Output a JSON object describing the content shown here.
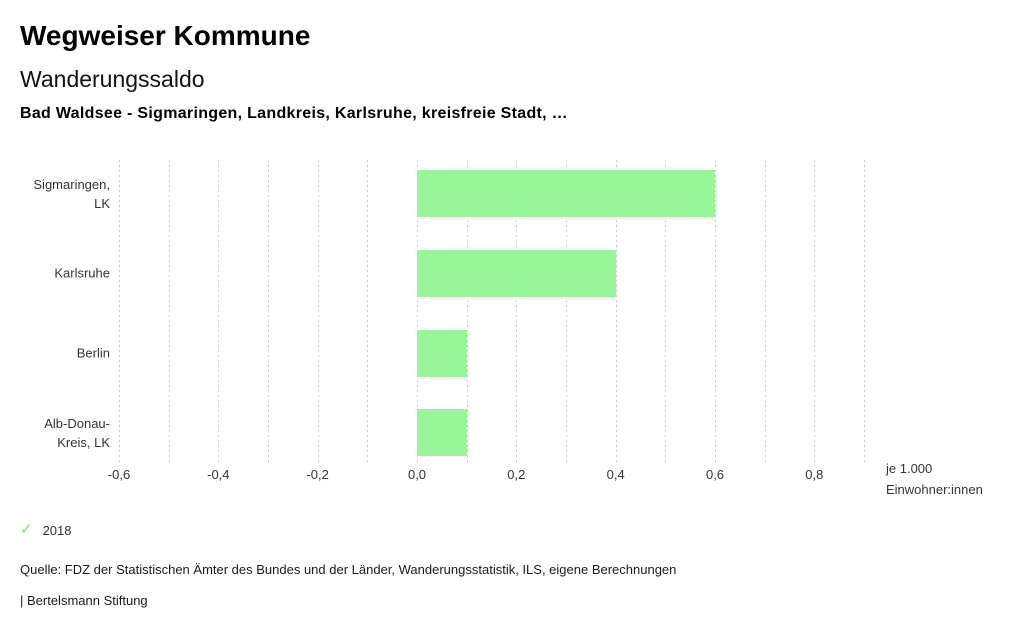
{
  "header": {
    "app_title": "Wegweiser Kommune",
    "chart_title": "Wanderungssaldo",
    "subtitle": "Bad Waldsee - Sigmaringen, Landkreis, Karlsruhe, kreisfreie Stadt, …"
  },
  "chart_data": {
    "type": "bar",
    "orientation": "horizontal",
    "title": "Wanderungssaldo",
    "categories": [
      "Sigmaringen, LK",
      "Karlsruhe",
      "Berlin",
      "Alb-Donau-Kreis, LK"
    ],
    "category_label_lines": [
      [
        "Sigmaringen,",
        "LK"
      ],
      [
        "Karlsruhe"
      ],
      [
        "Berlin"
      ],
      [
        "Alb-Donau-",
        "Kreis, LK"
      ]
    ],
    "values": [
      0.6,
      0.4,
      0.1,
      0.1
    ],
    "xlabel": "je 1.000 Einwohner:innen",
    "unit_label_lines": [
      "je 1.000",
      "Einwohner:innen"
    ],
    "x_tick_labels": [
      "-0,6",
      "-0,4",
      "-0,2",
      "0,0",
      "0,2",
      "0,4",
      "0,6",
      "0,8"
    ],
    "x_tick_values": [
      -0.6,
      -0.4,
      -0.2,
      0.0,
      0.2,
      0.4,
      0.6,
      0.8
    ],
    "xlim": [
      -0.6,
      0.9
    ],
    "gridline_step": 0.1,
    "grid_on": true,
    "bar_color": "#98f598",
    "grid_color": "#cccccc",
    "legend_position": "bottom-left"
  },
  "legend": {
    "year": "2018",
    "check_icon": "✓",
    "check_color": "#90ee90"
  },
  "footer": {
    "source": "Quelle: FDZ der Statistischen Ämter des Bundes und der Länder, Wanderungsstatistik, ILS, eigene Berechnungen",
    "attribution": "| Bertelsmann Stiftung"
  }
}
